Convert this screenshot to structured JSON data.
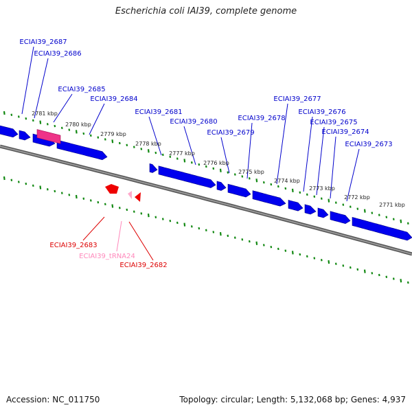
{
  "title": "Escherichia coli IAI39, complete genome",
  "footer": {
    "accession": "Accession: NC_011750",
    "topology": "Topology: circular; Length: 5,132,068 bp; Genes: 4,937"
  },
  "colors": {
    "forward_gene": "#0000ee",
    "reverse_gene": "#ee0000",
    "rrna": "#ee3388",
    "trna": "#ffaacc",
    "backbone": "#777777",
    "ticks": "#118811",
    "label_forward": "#0000cc",
    "label_reverse": "#dd0000",
    "label_trna": "#ff88bb"
  },
  "kbp_ticks": [
    "2781 kbp",
    "2780 kbp",
    "2779 kbp",
    "2778 kbp",
    "2777 kbp",
    "2776 kbp",
    "2775 kbp",
    "2774 kbp",
    "2773 kbp",
    "2772 kbp",
    "2771 kbp"
  ],
  "forward_labels": [
    "ECIAI39_2687",
    "ECIAI39_2686",
    "ECIAI39_2685",
    "ECIAI39_2684",
    "ECIAI39_2681",
    "ECIAI39_2680",
    "ECIAI39_2679",
    "ECIAI39_2678",
    "ECIAI39_2677",
    "ECIAI39_2676",
    "ECIAI39_2675",
    "ECIAI39_2674",
    "ECIAI39_2673"
  ],
  "reverse_labels": [
    "ECIAI39_2683",
    "ECIAI39_tRNA24",
    "ECIAI39_2682"
  ]
}
